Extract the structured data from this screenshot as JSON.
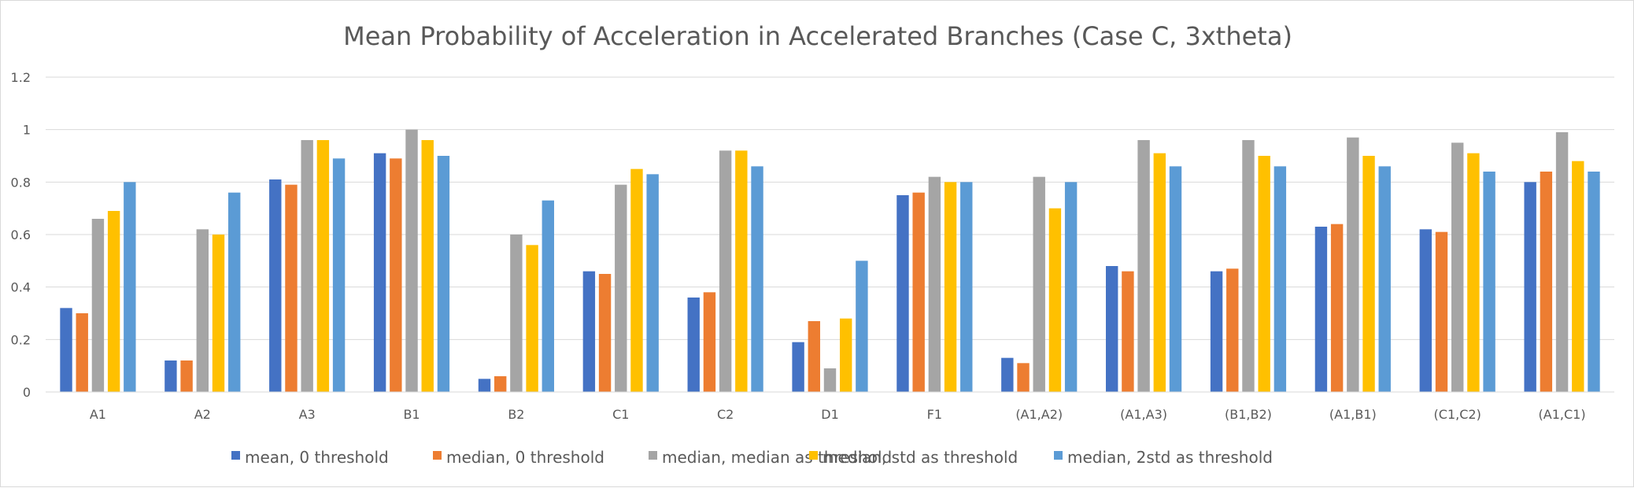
{
  "chart_data": {
    "type": "bar",
    "title": "Mean Probability of Acceleration in Accelerated Branches (Case C, 3xtheta)",
    "xlabel": "",
    "ylabel": "",
    "ylim": [
      0,
      1.2
    ],
    "yticks": [
      "0",
      "0.2",
      "0.4",
      "0.6",
      "0.8",
      "1",
      "1.2"
    ],
    "grid": true,
    "legend_position": "bottom",
    "categories": [
      "A1",
      "A2",
      "A3",
      "B1",
      "B2",
      "C1",
      "C2",
      "D1",
      "F1",
      "(A1,A2)",
      "(A1,A3)",
      "(B1,B2)",
      "(A1,B1)",
      "(C1,C2)",
      "(A1,C1)"
    ],
    "series": [
      {
        "name": "mean, 0 threshold",
        "color": "#4472C4",
        "values": [
          0.32,
          0.12,
          0.81,
          0.91,
          0.05,
          0.46,
          0.36,
          0.19,
          0.75,
          0.13,
          0.48,
          0.46,
          0.63,
          0.62,
          0.8
        ]
      },
      {
        "name": "median, 0 threshold",
        "color": "#ED7D31",
        "values": [
          0.3,
          0.12,
          0.79,
          0.89,
          0.06,
          0.45,
          0.38,
          0.27,
          0.76,
          0.11,
          0.46,
          0.47,
          0.64,
          0.61,
          0.84
        ]
      },
      {
        "name": "median, median as threshold",
        "color": "#A5A5A5",
        "values": [
          0.66,
          0.62,
          0.96,
          1.0,
          0.6,
          0.79,
          0.92,
          0.09,
          0.82,
          0.82,
          0.96,
          0.96,
          0.97,
          0.95,
          0.99
        ]
      },
      {
        "name": "median, std as threshold",
        "color": "#FFC000",
        "values": [
          0.69,
          0.6,
          0.96,
          0.96,
          0.56,
          0.85,
          0.92,
          0.28,
          0.8,
          0.7,
          0.91,
          0.9,
          0.9,
          0.91,
          0.88
        ]
      },
      {
        "name": "median, 2std as threshold",
        "color": "#5B9BD5",
        "values": [
          0.8,
          0.76,
          0.89,
          0.9,
          0.73,
          0.83,
          0.86,
          0.5,
          0.8,
          0.8,
          0.86,
          0.86,
          0.86,
          0.84,
          0.84
        ]
      }
    ]
  }
}
